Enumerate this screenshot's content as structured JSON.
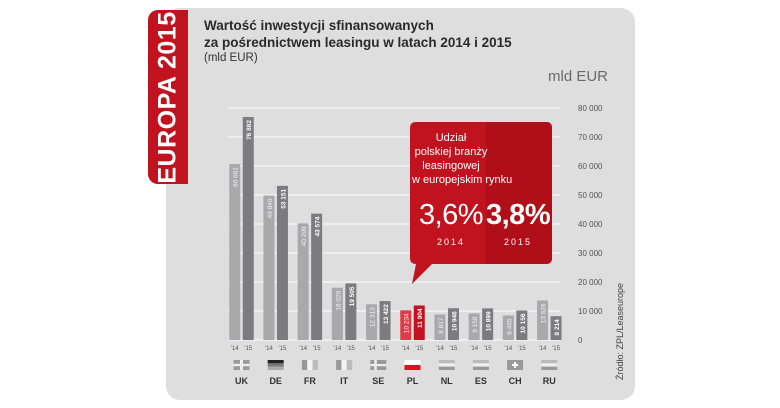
{
  "badge": "EUROPA 2015",
  "title_line1": "Wartość inwestycji sfinansowanych",
  "title_line2": "za pośrednictwem leasingu w latach 2014 i 2015",
  "unit_subtitle": "(mld EUR)",
  "callout": {
    "lines": [
      "Udział",
      "polskiej branży",
      "leasingowej",
      "w europejskim rynku"
    ],
    "value_2014": "3,6%",
    "value_2015": "3,8%",
    "year_2014": "2014",
    "year_2015": "2015"
  },
  "source": "Źródło: ZPL/Leaseurope",
  "colors": {
    "brand_red": "#c1121f",
    "bar_2014": "#a9a9ab",
    "bar_2015": "#7c7c7e",
    "highlight_2014": "#e23b46",
    "highlight_2015": "#c1121f",
    "card_bg": "#dededf"
  },
  "chart_data": {
    "type": "bar",
    "categories": [
      "UK",
      "DE",
      "FR",
      "IT",
      "SE",
      "PL",
      "NL",
      "ES",
      "CH",
      "RU"
    ],
    "bar_labels": [
      "'14",
      "'15"
    ],
    "series": [
      {
        "values": [
          60661,
          49840,
          40209,
          18029,
          12313,
          10234,
          8817,
          9158,
          8465,
          13626
        ],
        "labels": [
          "60 661",
          "49 840",
          "40 209",
          "18 029",
          "12 313",
          "10 234",
          "8 817",
          "9 158",
          "8 465",
          "13 626"
        ]
      },
      {
        "values": [
          76882,
          53151,
          43574,
          19505,
          13422,
          11904,
          10946,
          10899,
          10156,
          8214
        ],
        "labels": [
          "76 882",
          "53 151",
          "43 574",
          "19 505",
          "13 422",
          "11 904",
          "10 946",
          "10 899",
          "10 156",
          "8 214"
        ]
      }
    ],
    "highlight_category": "PL",
    "ylabel": "mld EUR",
    "ylim": [
      0,
      80000
    ],
    "yticks": [
      0,
      10000,
      20000,
      30000,
      40000,
      50000,
      60000,
      70000,
      80000
    ],
    "ytick_labels": [
      "0",
      "10 000",
      "20 000",
      "30 000",
      "40 000",
      "50 000",
      "60 000",
      "70 000",
      "80 000"
    ],
    "grid": true,
    "flags": [
      "uk-flag",
      "de-flag",
      "fr-flag",
      "it-flag",
      "se-flag",
      "pl-flag",
      "nl-flag",
      "es-flag",
      "ch-flag",
      "ru-flag"
    ]
  }
}
